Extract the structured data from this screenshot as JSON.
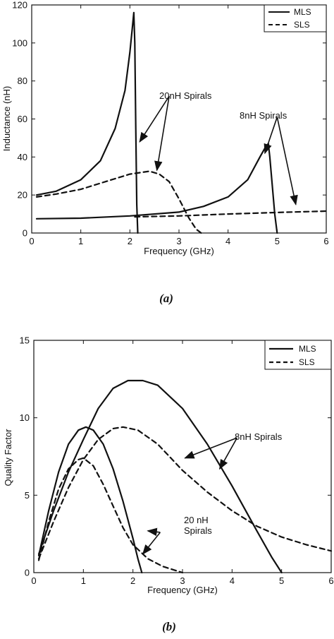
{
  "chart_data": [
    {
      "type": "line",
      "caption": "(a)",
      "xlabel": "Frequency (GHz)",
      "ylabel": "Inductance (nH)",
      "xlim": [
        0,
        6
      ],
      "ylim": [
        0,
        120
      ],
      "xticks": [
        0,
        1,
        2,
        3,
        4,
        5,
        6
      ],
      "yticks": [
        0,
        20,
        40,
        60,
        80,
        100,
        120
      ],
      "xtick_labels": [
        "0",
        "1",
        "2",
        "3",
        "4",
        "5",
        "6"
      ],
      "ytick_labels": [
        "0",
        "20",
        "40",
        "60",
        "80",
        "100",
        "120"
      ],
      "grid": false,
      "legend": {
        "position": "top-right",
        "entries": [
          {
            "name": "MLS",
            "style": "solid"
          },
          {
            "name": "SLS",
            "style": "dashed"
          }
        ]
      },
      "series": [
        {
          "legend": "MLS",
          "style": "solid",
          "points": [
            [
              0.1,
              20
            ],
            [
              0.5,
              22
            ],
            [
              1.0,
              28
            ],
            [
              1.4,
              38
            ],
            [
              1.7,
              55
            ],
            [
              1.9,
              75
            ],
            [
              2.0,
              95
            ],
            [
              2.05,
              108
            ],
            [
              2.08,
              116
            ],
            [
              2.1,
              100
            ],
            [
              2.12,
              55
            ],
            [
              2.14,
              15
            ],
            [
              2.16,
              0
            ]
          ]
        },
        {
          "legend": "SLS",
          "style": "dashed",
          "points": [
            [
              0.1,
              19
            ],
            [
              0.5,
              20.5
            ],
            [
              1.0,
              23
            ],
            [
              1.5,
              27
            ],
            [
              2.0,
              31
            ],
            [
              2.4,
              32.5
            ],
            [
              2.6,
              31
            ],
            [
              2.8,
              27
            ],
            [
              3.0,
              18
            ],
            [
              3.2,
              8
            ],
            [
              3.35,
              2
            ],
            [
              3.45,
              0
            ]
          ]
        },
        {
          "legend": "MLS",
          "style": "solid",
          "points": [
            [
              0.1,
              7.5
            ],
            [
              1.0,
              7.8
            ],
            [
              2.0,
              9
            ],
            [
              3.0,
              11
            ],
            [
              3.5,
              14
            ],
            [
              4.0,
              19
            ],
            [
              4.4,
              28
            ],
            [
              4.65,
              40
            ],
            [
              4.78,
              46
            ],
            [
              4.82,
              47
            ],
            [
              4.85,
              40
            ],
            [
              4.9,
              25
            ],
            [
              4.95,
              10
            ],
            [
              5.0,
              0
            ]
          ]
        },
        {
          "legend": "SLS",
          "style": "dashed",
          "points": [
            [
              2.1,
              8.5
            ],
            [
              3.0,
              9
            ],
            [
              4.0,
              10
            ],
            [
              5.0,
              10.8
            ],
            [
              6.0,
              11.5
            ]
          ]
        }
      ],
      "annotations": [
        {
          "text": "20nH Spirals",
          "at": [
            2.8,
            72
          ],
          "arrows_to": [
            [
              2.2,
              48
            ],
            [
              2.55,
              33
            ]
          ]
        },
        {
          "text": "8nH Spirals",
          "at": [
            5.0,
            61
          ],
          "arrows_to": [
            [
              4.75,
              42
            ],
            [
              5.38,
              15
            ]
          ]
        }
      ]
    },
    {
      "type": "line",
      "caption": "(b)",
      "xlabel": "Frequency (GHz)",
      "ylabel": "Quality Factor",
      "xlim": [
        0,
        6
      ],
      "ylim": [
        0,
        15
      ],
      "xticks": [
        0,
        1,
        2,
        3,
        4,
        5,
        6
      ],
      "yticks": [
        0,
        5,
        10,
        15
      ],
      "xtick_labels": [
        "0",
        "1",
        "2",
        "3",
        "4",
        "5",
        "6"
      ],
      "ytick_labels": [
        "0",
        "5",
        "10",
        "15"
      ],
      "grid": false,
      "legend": {
        "position": "top-right",
        "entries": [
          {
            "name": "MLS",
            "style": "solid"
          },
          {
            "name": "SLS",
            "style": "dashed"
          }
        ]
      },
      "series": [
        {
          "legend": "MLS",
          "style": "solid",
          "points": [
            [
              0.1,
              1.1
            ],
            [
              0.3,
              4.0
            ],
            [
              0.5,
              6.5
            ],
            [
              0.7,
              8.3
            ],
            [
              0.9,
              9.2
            ],
            [
              1.05,
              9.4
            ],
            [
              1.2,
              9.2
            ],
            [
              1.4,
              8.3
            ],
            [
              1.6,
              6.7
            ],
            [
              1.8,
              4.6
            ],
            [
              2.0,
              2.2
            ],
            [
              2.1,
              0.9
            ],
            [
              2.18,
              0
            ]
          ]
        },
        {
          "legend": "SLS",
          "style": "dashed",
          "points": [
            [
              0.1,
              0.8
            ],
            [
              0.3,
              3.3
            ],
            [
              0.5,
              5.4
            ],
            [
              0.7,
              6.7
            ],
            [
              0.9,
              7.3
            ],
            [
              1.0,
              7.4
            ],
            [
              1.2,
              6.9
            ],
            [
              1.4,
              5.7
            ],
            [
              1.6,
              4.3
            ],
            [
              1.8,
              2.9
            ],
            [
              2.0,
              1.8
            ],
            [
              2.3,
              0.9
            ],
            [
              2.6,
              0.4
            ],
            [
              3.0,
              0
            ]
          ]
        },
        {
          "legend": "MLS",
          "style": "solid",
          "points": [
            [
              0.1,
              1.2
            ],
            [
              0.4,
              4.0
            ],
            [
              0.7,
              6.5
            ],
            [
              1.0,
              8.6
            ],
            [
              1.3,
              10.6
            ],
            [
              1.6,
              11.9
            ],
            [
              1.9,
              12.4
            ],
            [
              2.2,
              12.4
            ],
            [
              2.5,
              12.1
            ],
            [
              3.0,
              10.6
            ],
            [
              3.5,
              8.3
            ],
            [
              4.0,
              5.6
            ],
            [
              4.5,
              2.7
            ],
            [
              4.8,
              1.0
            ],
            [
              5.0,
              0
            ]
          ]
        },
        {
          "legend": "SLS",
          "style": "dashed",
          "points": [
            [
              0.1,
              0.9
            ],
            [
              0.4,
              3.3
            ],
            [
              0.7,
              5.5
            ],
            [
              1.0,
              7.3
            ],
            [
              1.3,
              8.6
            ],
            [
              1.6,
              9.3
            ],
            [
              1.8,
              9.4
            ],
            [
              2.1,
              9.2
            ],
            [
              2.5,
              8.3
            ],
            [
              3.0,
              6.6
            ],
            [
              3.5,
              5.2
            ],
            [
              4.0,
              4.0
            ],
            [
              4.5,
              3.0
            ],
            [
              5.0,
              2.3
            ],
            [
              5.5,
              1.8
            ],
            [
              6.0,
              1.4
            ]
          ]
        }
      ],
      "annotations": [
        {
          "text": "8nH Spirals",
          "at": [
            4.1,
            8.7
          ],
          "arrows_to": [
            [
              3.05,
              7.4
            ],
            [
              3.75,
              6.7
            ]
          ]
        },
        {
          "text": "20 nH\nSpirals",
          "at": [
            2.55,
            2.6
          ],
          "arrows_to": [
            [
              2.3,
              2.7
            ],
            [
              2.2,
              1.2
            ]
          ]
        }
      ]
    }
  ]
}
